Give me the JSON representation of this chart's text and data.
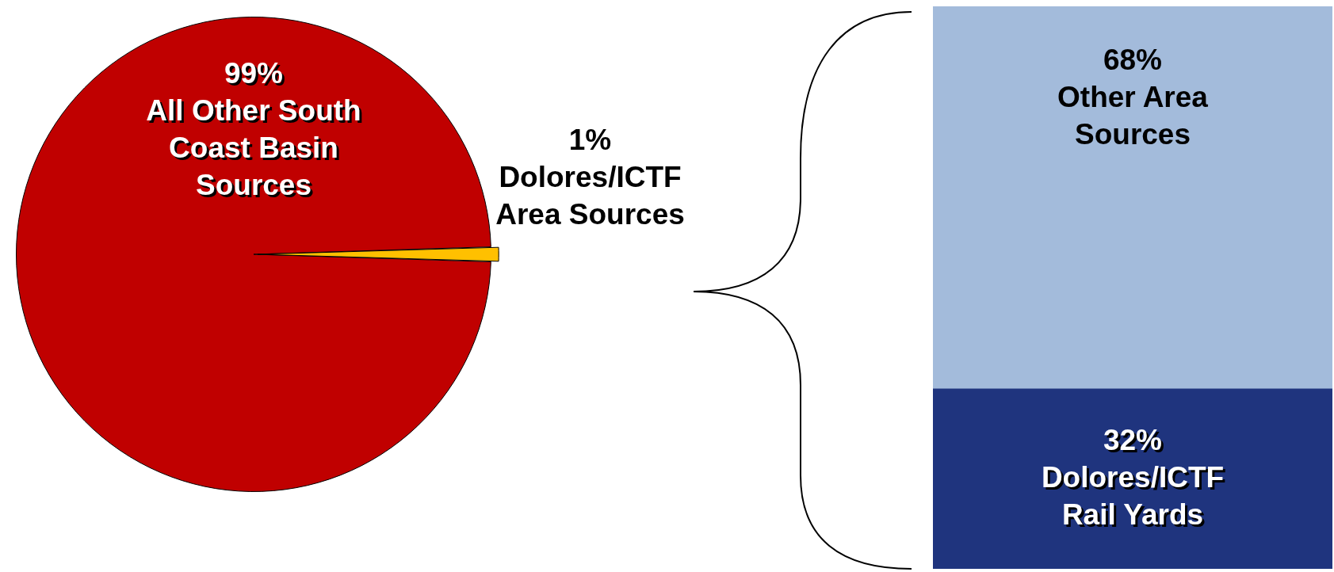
{
  "chart_data": [
    {
      "type": "pie",
      "categories": [
        "All Other South Coast Basin Sources",
        "Dolores/ICTF Area Sources"
      ],
      "values": [
        99,
        1
      ],
      "colors": [
        "#c00000",
        "#ffc000"
      ],
      "value_labels": [
        "99%",
        "1%"
      ]
    },
    {
      "type": "bar",
      "stacked": true,
      "categories": [
        null
      ],
      "legend": false,
      "series": [
        {
          "name": "Dolores/ICTF Rail Yards",
          "color": "#1f347e",
          "values": [
            32
          ],
          "value_labels": [
            "32%"
          ]
        },
        {
          "name": "Other Area Sources",
          "color": "#a3bbdb",
          "values": [
            68
          ],
          "value_labels": [
            "68%"
          ]
        }
      ]
    }
  ]
}
